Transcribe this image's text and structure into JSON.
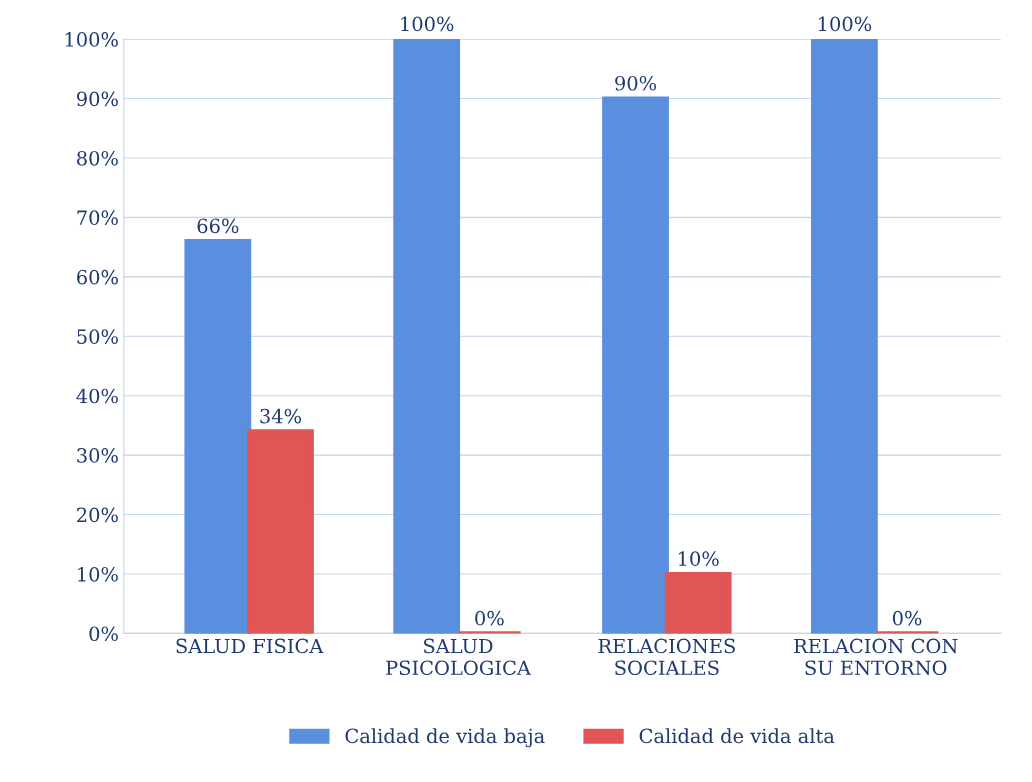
{
  "chart_data": {
    "type": "bar",
    "categories": [
      "SALUD FISICA",
      "SALUD\nPSICOLOGICA",
      "RELACIONES\nSOCIALES",
      "RELACION CON\nSU ENTORNO"
    ],
    "series": [
      {
        "name": "Calidad de vida baja",
        "color": "#5a8fe0",
        "values": [
          66,
          100,
          90,
          100
        ],
        "value_labels": [
          "66%",
          "100%",
          "90%",
          "100%"
        ]
      },
      {
        "name": "Calidad de vida alta",
        "color": "#e05555",
        "values": [
          34,
          0,
          10,
          0
        ],
        "value_labels": [
          "34%",
          "0%",
          "10%",
          "0%"
        ]
      }
    ],
    "ylim": [
      0,
      100
    ],
    "yticks": [
      {
        "value": 0,
        "label": "0%"
      },
      {
        "value": 10,
        "label": "10%"
      },
      {
        "value": 20,
        "label": "20%"
      },
      {
        "value": 30,
        "label": "30%"
      },
      {
        "value": 40,
        "label": "40%"
      },
      {
        "value": 50,
        "label": "50%"
      },
      {
        "value": 60,
        "label": "60%"
      },
      {
        "value": 70,
        "label": "70%"
      },
      {
        "value": 80,
        "label": "80%"
      },
      {
        "value": 90,
        "label": "90%"
      },
      {
        "value": 100,
        "label": "100%"
      }
    ],
    "grid": "y",
    "legend": "bottom"
  }
}
